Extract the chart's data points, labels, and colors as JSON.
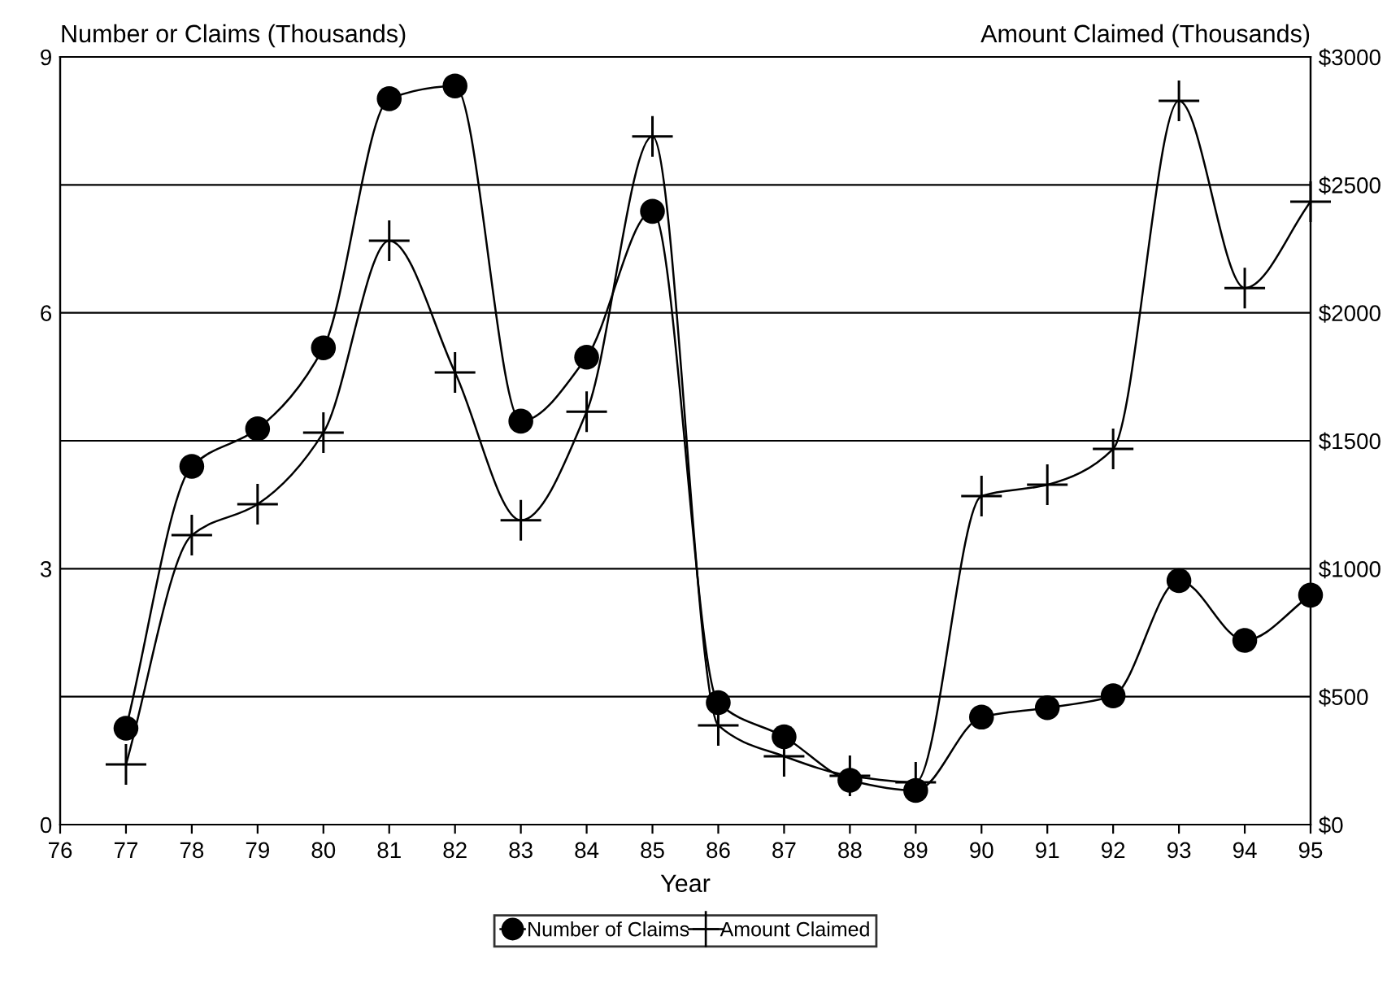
{
  "chart_data": {
    "type": "line",
    "xlabel": "Year",
    "ylabel": "Number or Claims (Thousands)",
    "y2label": "Amount Claimed (Thousands)",
    "x": [
      77,
      78,
      79,
      80,
      81,
      82,
      83,
      84,
      85,
      86,
      87,
      88,
      89,
      90,
      91,
      92,
      93,
      94,
      95
    ],
    "series": [
      {
        "name": "Number of Claims",
        "color": "#000000",
        "marker": "circle",
        "values": [
          1.13,
          4.2,
          4.64,
          5.59,
          8.51,
          8.66,
          4.73,
          5.48,
          7.19,
          1.43,
          1.03,
          0.52,
          0.4,
          1.26,
          1.37,
          1.51,
          2.86,
          2.16,
          2.69
        ]
      },
      {
        "name": "Amount Claimed",
        "color": "#000000",
        "marker": "cross",
        "axis": "y2",
        "values": [
          235,
          1131,
          1252,
          1532,
          2282,
          1767,
          1189,
          1614,
          2689,
          388,
          267,
          191,
          165,
          1284,
          1328,
          1468,
          2828,
          2097,
          2434
        ]
      }
    ],
    "xlim": [
      76,
      95
    ],
    "xticks": [
      76,
      77,
      78,
      79,
      80,
      81,
      82,
      83,
      84,
      85,
      86,
      87,
      88,
      89,
      90,
      91,
      92,
      93,
      94,
      95
    ],
    "ylim": [
      0,
      9
    ],
    "yticks": [
      0,
      3,
      6,
      9
    ],
    "y2lim": [
      0,
      3000
    ],
    "y2ticks": [
      {
        "value": 0,
        "label": "$0"
      },
      {
        "value": 500,
        "label": "$500"
      },
      {
        "value": 1000,
        "label": "$1000"
      },
      {
        "value": 1500,
        "label": "$1500"
      },
      {
        "value": 2000,
        "label": "$2000"
      },
      {
        "value": 2500,
        "label": "$2500"
      },
      {
        "value": 3000,
        "label": "$3000"
      }
    ],
    "grid": "y2",
    "legend": "bottom",
    "line_style": "solid"
  }
}
